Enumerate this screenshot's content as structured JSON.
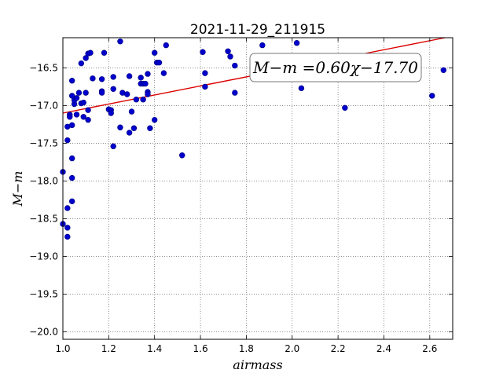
{
  "chart_data": {
    "type": "scatter",
    "title": "2021-11-29_211915",
    "xlabel": "airmass",
    "ylabel": "M−m",
    "xlim": [
      1.0,
      2.7
    ],
    "ylim": [
      -20.1,
      -16.1
    ],
    "xticks": [
      1.0,
      1.2,
      1.4,
      1.6,
      1.8,
      2.0,
      2.2,
      2.4,
      2.6
    ],
    "yticks": [
      -16.5,
      -17.0,
      -17.5,
      -18.0,
      -18.5,
      -19.0,
      -19.5,
      -20.0
    ],
    "xtick_labels": [
      "1.0",
      "1.2",
      "1.4",
      "1.6",
      "1.8",
      "2.0",
      "2.2",
      "2.4",
      "2.6"
    ],
    "ytick_labels": [
      "−16.5",
      "−17.0",
      "−17.5",
      "−18.0",
      "−18.5",
      "−19.0",
      "−19.5",
      "−20.0"
    ],
    "grid": true,
    "annotation": "M−m =0.60χ−17.70",
    "fit": {
      "slope": 0.6,
      "intercept": -17.7
    },
    "colors": {
      "points": "#0000cc",
      "fit_line": "#dd0000"
    },
    "points": [
      [
        1.0,
        -17.88
      ],
      [
        1.0,
        -18.57
      ],
      [
        1.02,
        -18.74
      ],
      [
        1.02,
        -18.62
      ],
      [
        1.02,
        -18.36
      ],
      [
        1.02,
        -17.46
      ],
      [
        1.02,
        -17.28
      ],
      [
        1.04,
        -17.26
      ],
      [
        1.04,
        -17.96
      ],
      [
        1.04,
        -18.27
      ],
      [
        1.04,
        -17.7
      ],
      [
        1.03,
        -17.12
      ],
      [
        1.03,
        -17.15
      ],
      [
        1.04,
        -16.67
      ],
      [
        1.04,
        -16.87
      ],
      [
        1.05,
        -16.98
      ],
      [
        1.05,
        -16.93
      ],
      [
        1.06,
        -16.9
      ],
      [
        1.07,
        -16.83
      ],
      [
        1.06,
        -17.12
      ],
      [
        1.08,
        -16.97
      ],
      [
        1.08,
        -16.44
      ],
      [
        1.09,
        -17.15
      ],
      [
        1.09,
        -16.96
      ],
      [
        1.1,
        -16.83
      ],
      [
        1.1,
        -16.37
      ],
      [
        1.11,
        -17.06
      ],
      [
        1.11,
        -17.19
      ],
      [
        1.11,
        -16.31
      ],
      [
        1.12,
        -16.3
      ],
      [
        1.13,
        -16.64
      ],
      [
        1.17,
        -16.65
      ],
      [
        1.17,
        -16.81
      ],
      [
        1.17,
        -16.83
      ],
      [
        1.18,
        -16.3
      ],
      [
        1.2,
        -17.05
      ],
      [
        1.21,
        -17.06
      ],
      [
        1.21,
        -17.1
      ],
      [
        1.22,
        -16.78
      ],
      [
        1.22,
        -16.62
      ],
      [
        1.22,
        -17.54
      ],
      [
        1.25,
        -16.15
      ],
      [
        1.25,
        -17.29
      ],
      [
        1.26,
        -16.83
      ],
      [
        1.28,
        -16.85
      ],
      [
        1.29,
        -16.61
      ],
      [
        1.29,
        -17.36
      ],
      [
        1.3,
        -17.08
      ],
      [
        1.31,
        -17.3
      ],
      [
        1.32,
        -16.92
      ],
      [
        1.34,
        -16.63
      ],
      [
        1.34,
        -16.71
      ],
      [
        1.35,
        -16.71
      ],
      [
        1.36,
        -16.71
      ],
      [
        1.35,
        -16.92
      ],
      [
        1.37,
        -16.58
      ],
      [
        1.37,
        -16.82
      ],
      [
        1.37,
        -16.85
      ],
      [
        1.38,
        -17.3
      ],
      [
        1.4,
        -16.3
      ],
      [
        1.4,
        -17.19
      ],
      [
        1.41,
        -16.43
      ],
      [
        1.42,
        -16.43
      ],
      [
        1.44,
        -16.57
      ],
      [
        1.45,
        -16.2
      ],
      [
        1.52,
        -17.66
      ],
      [
        1.61,
        -16.29
      ],
      [
        1.62,
        -16.57
      ],
      [
        1.62,
        -16.75
      ],
      [
        1.72,
        -16.28
      ],
      [
        1.73,
        -16.35
      ],
      [
        1.75,
        -16.47
      ],
      [
        1.75,
        -16.83
      ],
      [
        1.87,
        -16.2
      ],
      [
        2.02,
        -16.17
      ],
      [
        2.04,
        -16.77
      ],
      [
        2.23,
        -17.03
      ],
      [
        2.61,
        -16.87
      ],
      [
        2.66,
        -16.53
      ]
    ]
  }
}
